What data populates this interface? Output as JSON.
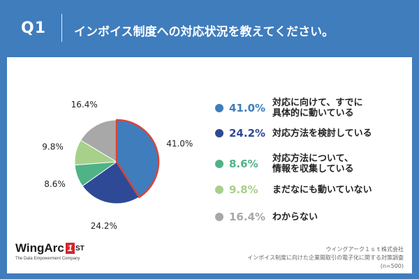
{
  "header": {
    "number": "Q1",
    "title": "インボイス制度への対応状況を教えてください。"
  },
  "chart_data": {
    "type": "pie",
    "start": "12 o'clock, clockwise",
    "slices": [
      {
        "label": "対応に向けて、すでに\n具体的に動いている",
        "value": 41.0,
        "display": "41.0%",
        "color": "#3f7dbd",
        "highlight": true,
        "highlight_color": "#d6453a"
      },
      {
        "label": "対応方法を検討している",
        "value": 24.2,
        "display": "24.2%",
        "color": "#2e4a96"
      },
      {
        "label": "対応方法について、\n情報を収集している",
        "value": 8.6,
        "display": "8.6%",
        "color": "#4fb387"
      },
      {
        "label": "まだなにも動いていない",
        "value": 9.8,
        "display": "9.8%",
        "color": "#a7d08a"
      },
      {
        "label": "わからない",
        "value": 16.4,
        "display": "16.4%",
        "color": "#a8a8a8"
      }
    ]
  },
  "logo": {
    "text": "WingArc",
    "mark": "1",
    "suffix": "ST",
    "tagline": "The Data Empowerment Company"
  },
  "source": {
    "line1": "ウイングアーク１ｓｔ株式会社",
    "line2": "インボイス制度に向けた企業間取引の電子化に関する対策調査",
    "line3": "(n=500)"
  }
}
